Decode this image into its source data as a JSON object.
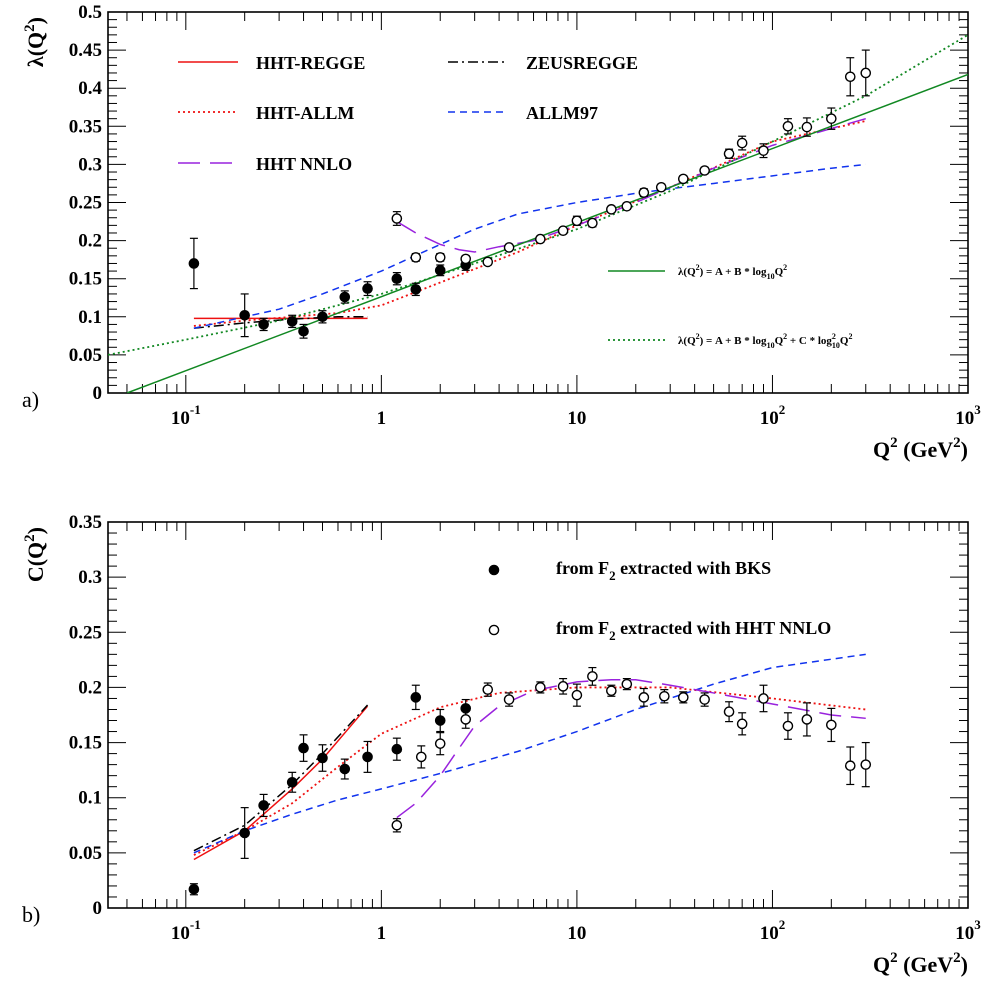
{
  "colors": {
    "hht_regge": "#ee1111",
    "hht_allm": "#ee1111",
    "hht_nnlo": "#9922dd",
    "zeusregge": "#000000",
    "allm97": "#1133ee",
    "fit": "#118822"
  },
  "chart_data": [
    {
      "type": "line",
      "panel_label": "a)",
      "ylabel_main": "λ(Q",
      "ylabel_sup": "2",
      "ylabel_end": ")",
      "xlabel_main": "Q",
      "xlabel_sup1": "2",
      "xlabel_mid": " (GeV",
      "xlabel_sup2": "2",
      "xlabel_end": ")",
      "x_scale": "log",
      "xlim": [
        0.04,
        1000
      ],
      "ylim": [
        0,
        0.5
      ],
      "y_ticks": [
        "0",
        "0.05",
        "0.1",
        "0.15",
        "0.2",
        "0.25",
        "0.3",
        "0.35",
        "0.4",
        "0.45",
        "0.5"
      ],
      "x_tick_labels": [
        {
          "value": 0.1,
          "base": "10",
          "exp": "-1"
        },
        {
          "value": 1,
          "base": "1",
          "exp": ""
        },
        {
          "value": 10,
          "base": "10",
          "exp": ""
        },
        {
          "value": 100,
          "base": "10",
          "exp": "2"
        },
        {
          "value": 1000,
          "base": "10",
          "exp": "3"
        }
      ],
      "legend": [
        {
          "name": "HHT-REGGE",
          "style": "solid",
          "color_key": "hht_regge"
        },
        {
          "name": "ZEUSREGGE",
          "style": "dashdot",
          "color_key": "zeusregge"
        },
        {
          "name": "HHT-ALLM",
          "style": "dotted",
          "color_key": "hht_allm"
        },
        {
          "name": "ALLM97",
          "style": "dashed",
          "color_key": "allm97"
        },
        {
          "name": "HHT NNLO",
          "style": "longdash",
          "color_key": "hht_nnlo"
        }
      ],
      "fit_legend": [
        {
          "text_before": "λ(Q",
          "sup": "2",
          "text_after": ") = A + B * log",
          "sub": "10",
          "tail": "Q",
          "tail_sup": "2",
          "extra": "",
          "style": "solid"
        },
        {
          "text_before": "λ(Q",
          "sup": "2",
          "text_after": ") = A + B * log",
          "sub": "10",
          "tail": "Q",
          "tail_sup": "2",
          "extra": " + C * log",
          "extra_sup": "2",
          "extra_sub": "10",
          "extra_tail": "Q",
          "extra_tail_sup": "2",
          "style": "dotted"
        }
      ],
      "series": [
        {
          "name": "HHT-REGGE",
          "style": "solid",
          "color_key": "hht_regge",
          "x": [
            0.11,
            0.85
          ],
          "y": [
            0.098,
            0.098
          ]
        },
        {
          "name": "ZEUSREGGE",
          "style": "dashdot",
          "color_key": "zeusregge",
          "x": [
            0.11,
            0.2,
            0.35,
            0.6,
            0.85
          ],
          "y": [
            0.085,
            0.092,
            0.097,
            0.1,
            0.1
          ]
        },
        {
          "name": "HHT-ALLM",
          "style": "dotted",
          "color_key": "hht_allm",
          "x": [
            0.11,
            0.2,
            0.35,
            0.6,
            1,
            2,
            5,
            10,
            30,
            100,
            300
          ],
          "y": [
            0.088,
            0.095,
            0.1,
            0.105,
            0.115,
            0.145,
            0.185,
            0.22,
            0.27,
            0.33,
            0.357
          ]
        },
        {
          "name": "ALLM97",
          "style": "dashed",
          "color_key": "allm97",
          "x": [
            0.11,
            0.2,
            0.3,
            0.5,
            1,
            2,
            3,
            5,
            10,
            20,
            30,
            50,
            100,
            200,
            300
          ],
          "y": [
            0.085,
            0.1,
            0.11,
            0.13,
            0.16,
            0.195,
            0.215,
            0.235,
            0.25,
            0.262,
            0.268,
            0.275,
            0.285,
            0.295,
            0.3
          ]
        },
        {
          "name": "HHT NNLO",
          "style": "longdash",
          "color_key": "hht_nnlo",
          "x": [
            1.2,
            1.5,
            2,
            2.5,
            3,
            4,
            6,
            10,
            20,
            50,
            100,
            300
          ],
          "y": [
            0.225,
            0.21,
            0.195,
            0.188,
            0.185,
            0.192,
            0.2,
            0.22,
            0.25,
            0.295,
            0.325,
            0.36
          ]
        },
        {
          "name": "fit_linear",
          "style": "solid",
          "color_key": "fit",
          "x": [
            0.05,
            1000
          ],
          "y": [
            0.0,
            0.418
          ]
        },
        {
          "name": "fit_quadratic",
          "style": "dotted",
          "color_key": "fit",
          "x": [
            0.04,
            0.1,
            0.3,
            1,
            3,
            10,
            30,
            100,
            300,
            1000
          ],
          "y": [
            0.05,
            0.07,
            0.095,
            0.13,
            0.17,
            0.215,
            0.265,
            0.33,
            0.39,
            0.47
          ]
        }
      ],
      "points_filled": [
        {
          "x": 0.11,
          "y": 0.17,
          "err": 0.033
        },
        {
          "x": 0.2,
          "y": 0.102,
          "err": 0.028
        },
        {
          "x": 0.25,
          "y": 0.09,
          "err": 0.008
        },
        {
          "x": 0.35,
          "y": 0.094,
          "err": 0.008
        },
        {
          "x": 0.4,
          "y": 0.081,
          "err": 0.009
        },
        {
          "x": 0.5,
          "y": 0.1,
          "err": 0.008
        },
        {
          "x": 0.65,
          "y": 0.126,
          "err": 0.008
        },
        {
          "x": 0.85,
          "y": 0.137,
          "err": 0.009
        },
        {
          "x": 1.2,
          "y": 0.15,
          "err": 0.008
        },
        {
          "x": 1.5,
          "y": 0.136,
          "err": 0.008
        },
        {
          "x": 2.0,
          "y": 0.161,
          "err": 0.007
        },
        {
          "x": 2.7,
          "y": 0.168,
          "err": 0.007
        }
      ],
      "points_open": [
        {
          "x": 1.2,
          "y": 0.229,
          "err": 0.009
        },
        {
          "x": 1.5,
          "y": 0.178,
          "err": 0.005
        },
        {
          "x": 2.0,
          "y": 0.178,
          "err": 0.005
        },
        {
          "x": 2.7,
          "y": 0.176,
          "err": 0.004
        },
        {
          "x": 3.5,
          "y": 0.172,
          "err": 0.004
        },
        {
          "x": 4.5,
          "y": 0.191,
          "err": 0.004
        },
        {
          "x": 6.5,
          "y": 0.202,
          "err": 0.004
        },
        {
          "x": 8.5,
          "y": 0.213,
          "err": 0.004
        },
        {
          "x": 10,
          "y": 0.226,
          "err": 0.006
        },
        {
          "x": 12,
          "y": 0.223,
          "err": 0.005
        },
        {
          "x": 15,
          "y": 0.241,
          "err": 0.004
        },
        {
          "x": 18,
          "y": 0.245,
          "err": 0.004
        },
        {
          "x": 22,
          "y": 0.263,
          "err": 0.005
        },
        {
          "x": 27,
          "y": 0.27,
          "err": 0.004
        },
        {
          "x": 35,
          "y": 0.281,
          "err": 0.004
        },
        {
          "x": 45,
          "y": 0.292,
          "err": 0.004
        },
        {
          "x": 60,
          "y": 0.314,
          "err": 0.006
        },
        {
          "x": 70,
          "y": 0.328,
          "err": 0.009
        },
        {
          "x": 90,
          "y": 0.318,
          "err": 0.009
        },
        {
          "x": 120,
          "y": 0.35,
          "err": 0.01
        },
        {
          "x": 150,
          "y": 0.349,
          "err": 0.012
        },
        {
          "x": 200,
          "y": 0.36,
          "err": 0.014
        },
        {
          "x": 250,
          "y": 0.415,
          "err": 0.025
        },
        {
          "x": 300,
          "y": 0.42,
          "err": 0.03
        }
      ]
    },
    {
      "type": "line",
      "panel_label": "b)",
      "ylabel_main": "C(Q",
      "ylabel_sup": "2",
      "ylabel_end": ")",
      "xlabel_main": "Q",
      "xlabel_sup1": "2",
      "xlabel_mid": " (GeV",
      "xlabel_sup2": "2",
      "xlabel_end": ")",
      "x_scale": "log",
      "xlim": [
        0.04,
        1000
      ],
      "ylim": [
        0,
        0.35
      ],
      "y_ticks": [
        "0",
        "0.05",
        "0.1",
        "0.15",
        "0.2",
        "0.25",
        "0.3",
        "0.35"
      ],
      "x_tick_labels": [
        {
          "value": 0.1,
          "base": "10",
          "exp": "-1"
        },
        {
          "value": 1,
          "base": "1",
          "exp": ""
        },
        {
          "value": 10,
          "base": "10",
          "exp": ""
        },
        {
          "value": 100,
          "base": "10",
          "exp": "2"
        },
        {
          "value": 1000,
          "base": "10",
          "exp": "3"
        }
      ],
      "legend": [
        {
          "marker": "filled",
          "pre": "from F",
          "sub": "2",
          "post": " extracted with BKS"
        },
        {
          "marker": "open",
          "pre": "from F",
          "sub": "2",
          "post": " extracted with HHT NNLO"
        }
      ],
      "series": [
        {
          "name": "HHT-REGGE",
          "style": "solid",
          "color_key": "hht_regge",
          "x": [
            0.11,
            0.2,
            0.35,
            0.5,
            0.85
          ],
          "y": [
            0.044,
            0.07,
            0.108,
            0.135,
            0.183
          ]
        },
        {
          "name": "ZEUSREGGE",
          "style": "dashdot",
          "color_key": "zeusregge",
          "x": [
            0.11,
            0.2,
            0.35,
            0.5,
            0.85
          ],
          "y": [
            0.052,
            0.075,
            0.112,
            0.14,
            0.184
          ]
        },
        {
          "name": "HHT-ALLM",
          "style": "dotted",
          "color_key": "hht_allm",
          "x": [
            0.11,
            0.2,
            0.35,
            0.6,
            1,
            2,
            4,
            10,
            30,
            100,
            300
          ],
          "y": [
            0.048,
            0.07,
            0.095,
            0.128,
            0.158,
            0.182,
            0.195,
            0.2,
            0.2,
            0.19,
            0.18
          ]
        },
        {
          "name": "ALLM97",
          "style": "dashed",
          "color_key": "allm97",
          "x": [
            0.11,
            0.2,
            0.35,
            0.6,
            1,
            2,
            5,
            10,
            20,
            50,
            100,
            300
          ],
          "y": [
            0.05,
            0.07,
            0.085,
            0.098,
            0.108,
            0.122,
            0.142,
            0.16,
            0.18,
            0.203,
            0.218,
            0.23
          ]
        },
        {
          "name": "HHT NNLO",
          "style": "longdash",
          "color_key": "hht_nnlo",
          "x": [
            1.2,
            1.5,
            2,
            2.5,
            3,
            4,
            6,
            10,
            15,
            20,
            30,
            50,
            100,
            200,
            300
          ],
          "y": [
            0.082,
            0.095,
            0.12,
            0.145,
            0.165,
            0.183,
            0.197,
            0.205,
            0.207,
            0.207,
            0.202,
            0.195,
            0.185,
            0.175,
            0.172
          ]
        }
      ],
      "points_filled": [
        {
          "x": 0.11,
          "y": 0.017,
          "err": 0.005
        },
        {
          "x": 0.2,
          "y": 0.068,
          "err": 0.023
        },
        {
          "x": 0.25,
          "y": 0.093,
          "err": 0.01
        },
        {
          "x": 0.35,
          "y": 0.114,
          "err": 0.009
        },
        {
          "x": 0.4,
          "y": 0.145,
          "err": 0.012
        },
        {
          "x": 0.5,
          "y": 0.136,
          "err": 0.012
        },
        {
          "x": 0.65,
          "y": 0.126,
          "err": 0.009
        },
        {
          "x": 0.85,
          "y": 0.137,
          "err": 0.014
        },
        {
          "x": 1.2,
          "y": 0.144,
          "err": 0.01
        },
        {
          "x": 1.5,
          "y": 0.191,
          "err": 0.011
        },
        {
          "x": 2.0,
          "y": 0.17,
          "err": 0.01
        },
        {
          "x": 2.7,
          "y": 0.181,
          "err": 0.008
        }
      ],
      "points_open": [
        {
          "x": 1.2,
          "y": 0.075,
          "err": 0.006
        },
        {
          "x": 1.6,
          "y": 0.137,
          "err": 0.01
        },
        {
          "x": 2.0,
          "y": 0.149,
          "err": 0.01
        },
        {
          "x": 2.7,
          "y": 0.171,
          "err": 0.008
        },
        {
          "x": 3.5,
          "y": 0.198,
          "err": 0.006
        },
        {
          "x": 4.5,
          "y": 0.189,
          "err": 0.006
        },
        {
          "x": 6.5,
          "y": 0.2,
          "err": 0.005
        },
        {
          "x": 8.5,
          "y": 0.201,
          "err": 0.007
        },
        {
          "x": 10,
          "y": 0.193,
          "err": 0.01
        },
        {
          "x": 12,
          "y": 0.21,
          "err": 0.008
        },
        {
          "x": 15,
          "y": 0.197,
          "err": 0.005
        },
        {
          "x": 18,
          "y": 0.203,
          "err": 0.005
        },
        {
          "x": 22,
          "y": 0.191,
          "err": 0.008
        },
        {
          "x": 28,
          "y": 0.192,
          "err": 0.006
        },
        {
          "x": 35,
          "y": 0.191,
          "err": 0.005
        },
        {
          "x": 45,
          "y": 0.189,
          "err": 0.006
        },
        {
          "x": 60,
          "y": 0.178,
          "err": 0.009
        },
        {
          "x": 70,
          "y": 0.167,
          "err": 0.01
        },
        {
          "x": 90,
          "y": 0.19,
          "err": 0.012
        },
        {
          "x": 120,
          "y": 0.165,
          "err": 0.012
        },
        {
          "x": 150,
          "y": 0.171,
          "err": 0.015
        },
        {
          "x": 200,
          "y": 0.166,
          "err": 0.015
        },
        {
          "x": 250,
          "y": 0.129,
          "err": 0.017
        },
        {
          "x": 300,
          "y": 0.13,
          "err": 0.02
        }
      ]
    }
  ]
}
